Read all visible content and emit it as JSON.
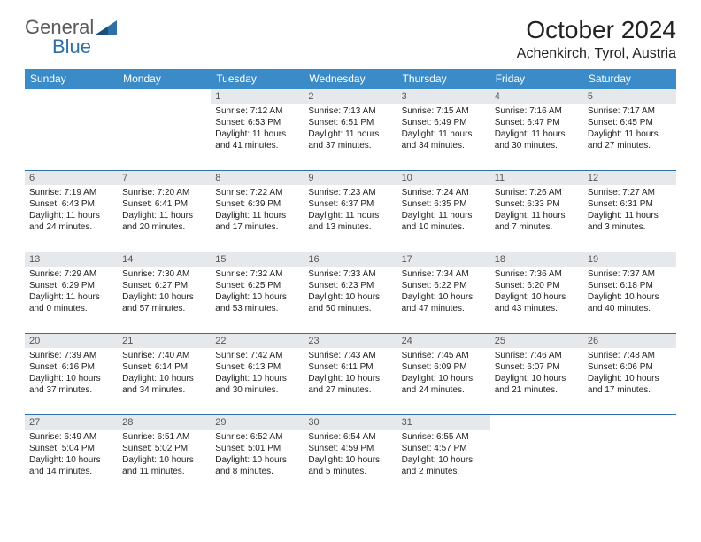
{
  "logo": {
    "text_general": "General",
    "text_blue": "Blue"
  },
  "title": "October 2024",
  "location": "Achenkirch, Tyrol, Austria",
  "calendar": {
    "header_bg": "#3b8bc9",
    "header_fg": "#ffffff",
    "daynum_bg": "#e6e9ec",
    "border_color": "#2f6fa8",
    "text_color": "#222222",
    "font_size_body": 10,
    "font_size_header": 12,
    "weekdays": [
      "Sunday",
      "Monday",
      "Tuesday",
      "Wednesday",
      "Thursday",
      "Friday",
      "Saturday"
    ],
    "weeks": [
      [
        {
          "day": "",
          "sunrise": "",
          "sunset": "",
          "daylight": ""
        },
        {
          "day": "",
          "sunrise": "",
          "sunset": "",
          "daylight": ""
        },
        {
          "day": "1",
          "sunrise": "Sunrise: 7:12 AM",
          "sunset": "Sunset: 6:53 PM",
          "daylight": "Daylight: 11 hours and 41 minutes."
        },
        {
          "day": "2",
          "sunrise": "Sunrise: 7:13 AM",
          "sunset": "Sunset: 6:51 PM",
          "daylight": "Daylight: 11 hours and 37 minutes."
        },
        {
          "day": "3",
          "sunrise": "Sunrise: 7:15 AM",
          "sunset": "Sunset: 6:49 PM",
          "daylight": "Daylight: 11 hours and 34 minutes."
        },
        {
          "day": "4",
          "sunrise": "Sunrise: 7:16 AM",
          "sunset": "Sunset: 6:47 PM",
          "daylight": "Daylight: 11 hours and 30 minutes."
        },
        {
          "day": "5",
          "sunrise": "Sunrise: 7:17 AM",
          "sunset": "Sunset: 6:45 PM",
          "daylight": "Daylight: 11 hours and 27 minutes."
        }
      ],
      [
        {
          "day": "6",
          "sunrise": "Sunrise: 7:19 AM",
          "sunset": "Sunset: 6:43 PM",
          "daylight": "Daylight: 11 hours and 24 minutes."
        },
        {
          "day": "7",
          "sunrise": "Sunrise: 7:20 AM",
          "sunset": "Sunset: 6:41 PM",
          "daylight": "Daylight: 11 hours and 20 minutes."
        },
        {
          "day": "8",
          "sunrise": "Sunrise: 7:22 AM",
          "sunset": "Sunset: 6:39 PM",
          "daylight": "Daylight: 11 hours and 17 minutes."
        },
        {
          "day": "9",
          "sunrise": "Sunrise: 7:23 AM",
          "sunset": "Sunset: 6:37 PM",
          "daylight": "Daylight: 11 hours and 13 minutes."
        },
        {
          "day": "10",
          "sunrise": "Sunrise: 7:24 AM",
          "sunset": "Sunset: 6:35 PM",
          "daylight": "Daylight: 11 hours and 10 minutes."
        },
        {
          "day": "11",
          "sunrise": "Sunrise: 7:26 AM",
          "sunset": "Sunset: 6:33 PM",
          "daylight": "Daylight: 11 hours and 7 minutes."
        },
        {
          "day": "12",
          "sunrise": "Sunrise: 7:27 AM",
          "sunset": "Sunset: 6:31 PM",
          "daylight": "Daylight: 11 hours and 3 minutes."
        }
      ],
      [
        {
          "day": "13",
          "sunrise": "Sunrise: 7:29 AM",
          "sunset": "Sunset: 6:29 PM",
          "daylight": "Daylight: 11 hours and 0 minutes."
        },
        {
          "day": "14",
          "sunrise": "Sunrise: 7:30 AM",
          "sunset": "Sunset: 6:27 PM",
          "daylight": "Daylight: 10 hours and 57 minutes."
        },
        {
          "day": "15",
          "sunrise": "Sunrise: 7:32 AM",
          "sunset": "Sunset: 6:25 PM",
          "daylight": "Daylight: 10 hours and 53 minutes."
        },
        {
          "day": "16",
          "sunrise": "Sunrise: 7:33 AM",
          "sunset": "Sunset: 6:23 PM",
          "daylight": "Daylight: 10 hours and 50 minutes."
        },
        {
          "day": "17",
          "sunrise": "Sunrise: 7:34 AM",
          "sunset": "Sunset: 6:22 PM",
          "daylight": "Daylight: 10 hours and 47 minutes."
        },
        {
          "day": "18",
          "sunrise": "Sunrise: 7:36 AM",
          "sunset": "Sunset: 6:20 PM",
          "daylight": "Daylight: 10 hours and 43 minutes."
        },
        {
          "day": "19",
          "sunrise": "Sunrise: 7:37 AM",
          "sunset": "Sunset: 6:18 PM",
          "daylight": "Daylight: 10 hours and 40 minutes."
        }
      ],
      [
        {
          "day": "20",
          "sunrise": "Sunrise: 7:39 AM",
          "sunset": "Sunset: 6:16 PM",
          "daylight": "Daylight: 10 hours and 37 minutes."
        },
        {
          "day": "21",
          "sunrise": "Sunrise: 7:40 AM",
          "sunset": "Sunset: 6:14 PM",
          "daylight": "Daylight: 10 hours and 34 minutes."
        },
        {
          "day": "22",
          "sunrise": "Sunrise: 7:42 AM",
          "sunset": "Sunset: 6:13 PM",
          "daylight": "Daylight: 10 hours and 30 minutes."
        },
        {
          "day": "23",
          "sunrise": "Sunrise: 7:43 AM",
          "sunset": "Sunset: 6:11 PM",
          "daylight": "Daylight: 10 hours and 27 minutes."
        },
        {
          "day": "24",
          "sunrise": "Sunrise: 7:45 AM",
          "sunset": "Sunset: 6:09 PM",
          "daylight": "Daylight: 10 hours and 24 minutes."
        },
        {
          "day": "25",
          "sunrise": "Sunrise: 7:46 AM",
          "sunset": "Sunset: 6:07 PM",
          "daylight": "Daylight: 10 hours and 21 minutes."
        },
        {
          "day": "26",
          "sunrise": "Sunrise: 7:48 AM",
          "sunset": "Sunset: 6:06 PM",
          "daylight": "Daylight: 10 hours and 17 minutes."
        }
      ],
      [
        {
          "day": "27",
          "sunrise": "Sunrise: 6:49 AM",
          "sunset": "Sunset: 5:04 PM",
          "daylight": "Daylight: 10 hours and 14 minutes."
        },
        {
          "day": "28",
          "sunrise": "Sunrise: 6:51 AM",
          "sunset": "Sunset: 5:02 PM",
          "daylight": "Daylight: 10 hours and 11 minutes."
        },
        {
          "day": "29",
          "sunrise": "Sunrise: 6:52 AM",
          "sunset": "Sunset: 5:01 PM",
          "daylight": "Daylight: 10 hours and 8 minutes."
        },
        {
          "day": "30",
          "sunrise": "Sunrise: 6:54 AM",
          "sunset": "Sunset: 4:59 PM",
          "daylight": "Daylight: 10 hours and 5 minutes."
        },
        {
          "day": "31",
          "sunrise": "Sunrise: 6:55 AM",
          "sunset": "Sunset: 4:57 PM",
          "daylight": "Daylight: 10 hours and 2 minutes."
        },
        {
          "day": "",
          "sunrise": "",
          "sunset": "",
          "daylight": ""
        },
        {
          "day": "",
          "sunrise": "",
          "sunset": "",
          "daylight": ""
        }
      ]
    ]
  }
}
